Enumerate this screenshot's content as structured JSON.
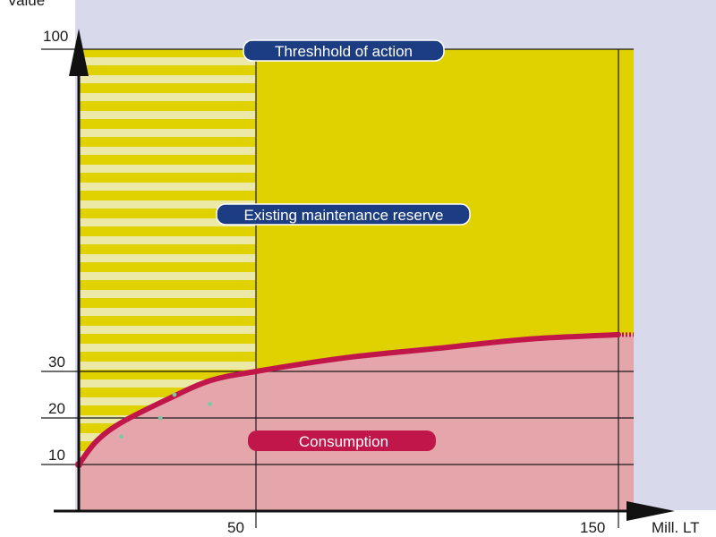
{
  "axes": {
    "ylabel": "Value",
    "xlabel": "Mill. LT",
    "yticks": [
      "10",
      "20",
      "30",
      "100"
    ],
    "xticks": [
      "50",
      "150"
    ]
  },
  "labels": {
    "threshold": "Threshhold of action",
    "reserve": "Existing maintenance reserve",
    "consumption": "Consumption"
  },
  "chart_data": {
    "type": "area",
    "xlabel": "Mill. LT",
    "ylabel": "Value",
    "x_ticks": [
      50,
      150
    ],
    "y_ticks": [
      10,
      20,
      30,
      100
    ],
    "xlim": [
      0,
      150
    ],
    "ylim": [
      0,
      100
    ],
    "series": [
      {
        "name": "Consumption",
        "x": [
          0,
          5,
          12,
          25,
          37,
          50,
          75,
          100,
          125,
          150
        ],
        "values": [
          10,
          15,
          19,
          24,
          28,
          30,
          33,
          35,
          37,
          38
        ]
      }
    ],
    "points": [
      {
        "x": 12,
        "y": 16
      },
      {
        "x": 23,
        "y": 20
      },
      {
        "x": 27,
        "y": 25
      },
      {
        "x": 37,
        "y": 23
      }
    ],
    "regions": [
      "Threshhold of action",
      "Existing maintenance reserve",
      "Consumption"
    ]
  },
  "colors": {
    "background_band": "#d9d9ec",
    "reserve_fill": "#dfd200",
    "stripe": "#ece8a6",
    "consumption_fill": "#e4a6aa",
    "curve": "#c0164a",
    "pill_blue": "#1d3d82",
    "pill_red": "#c0164a",
    "grid": "#1a1a1a",
    "point": "#7fc6a6"
  }
}
